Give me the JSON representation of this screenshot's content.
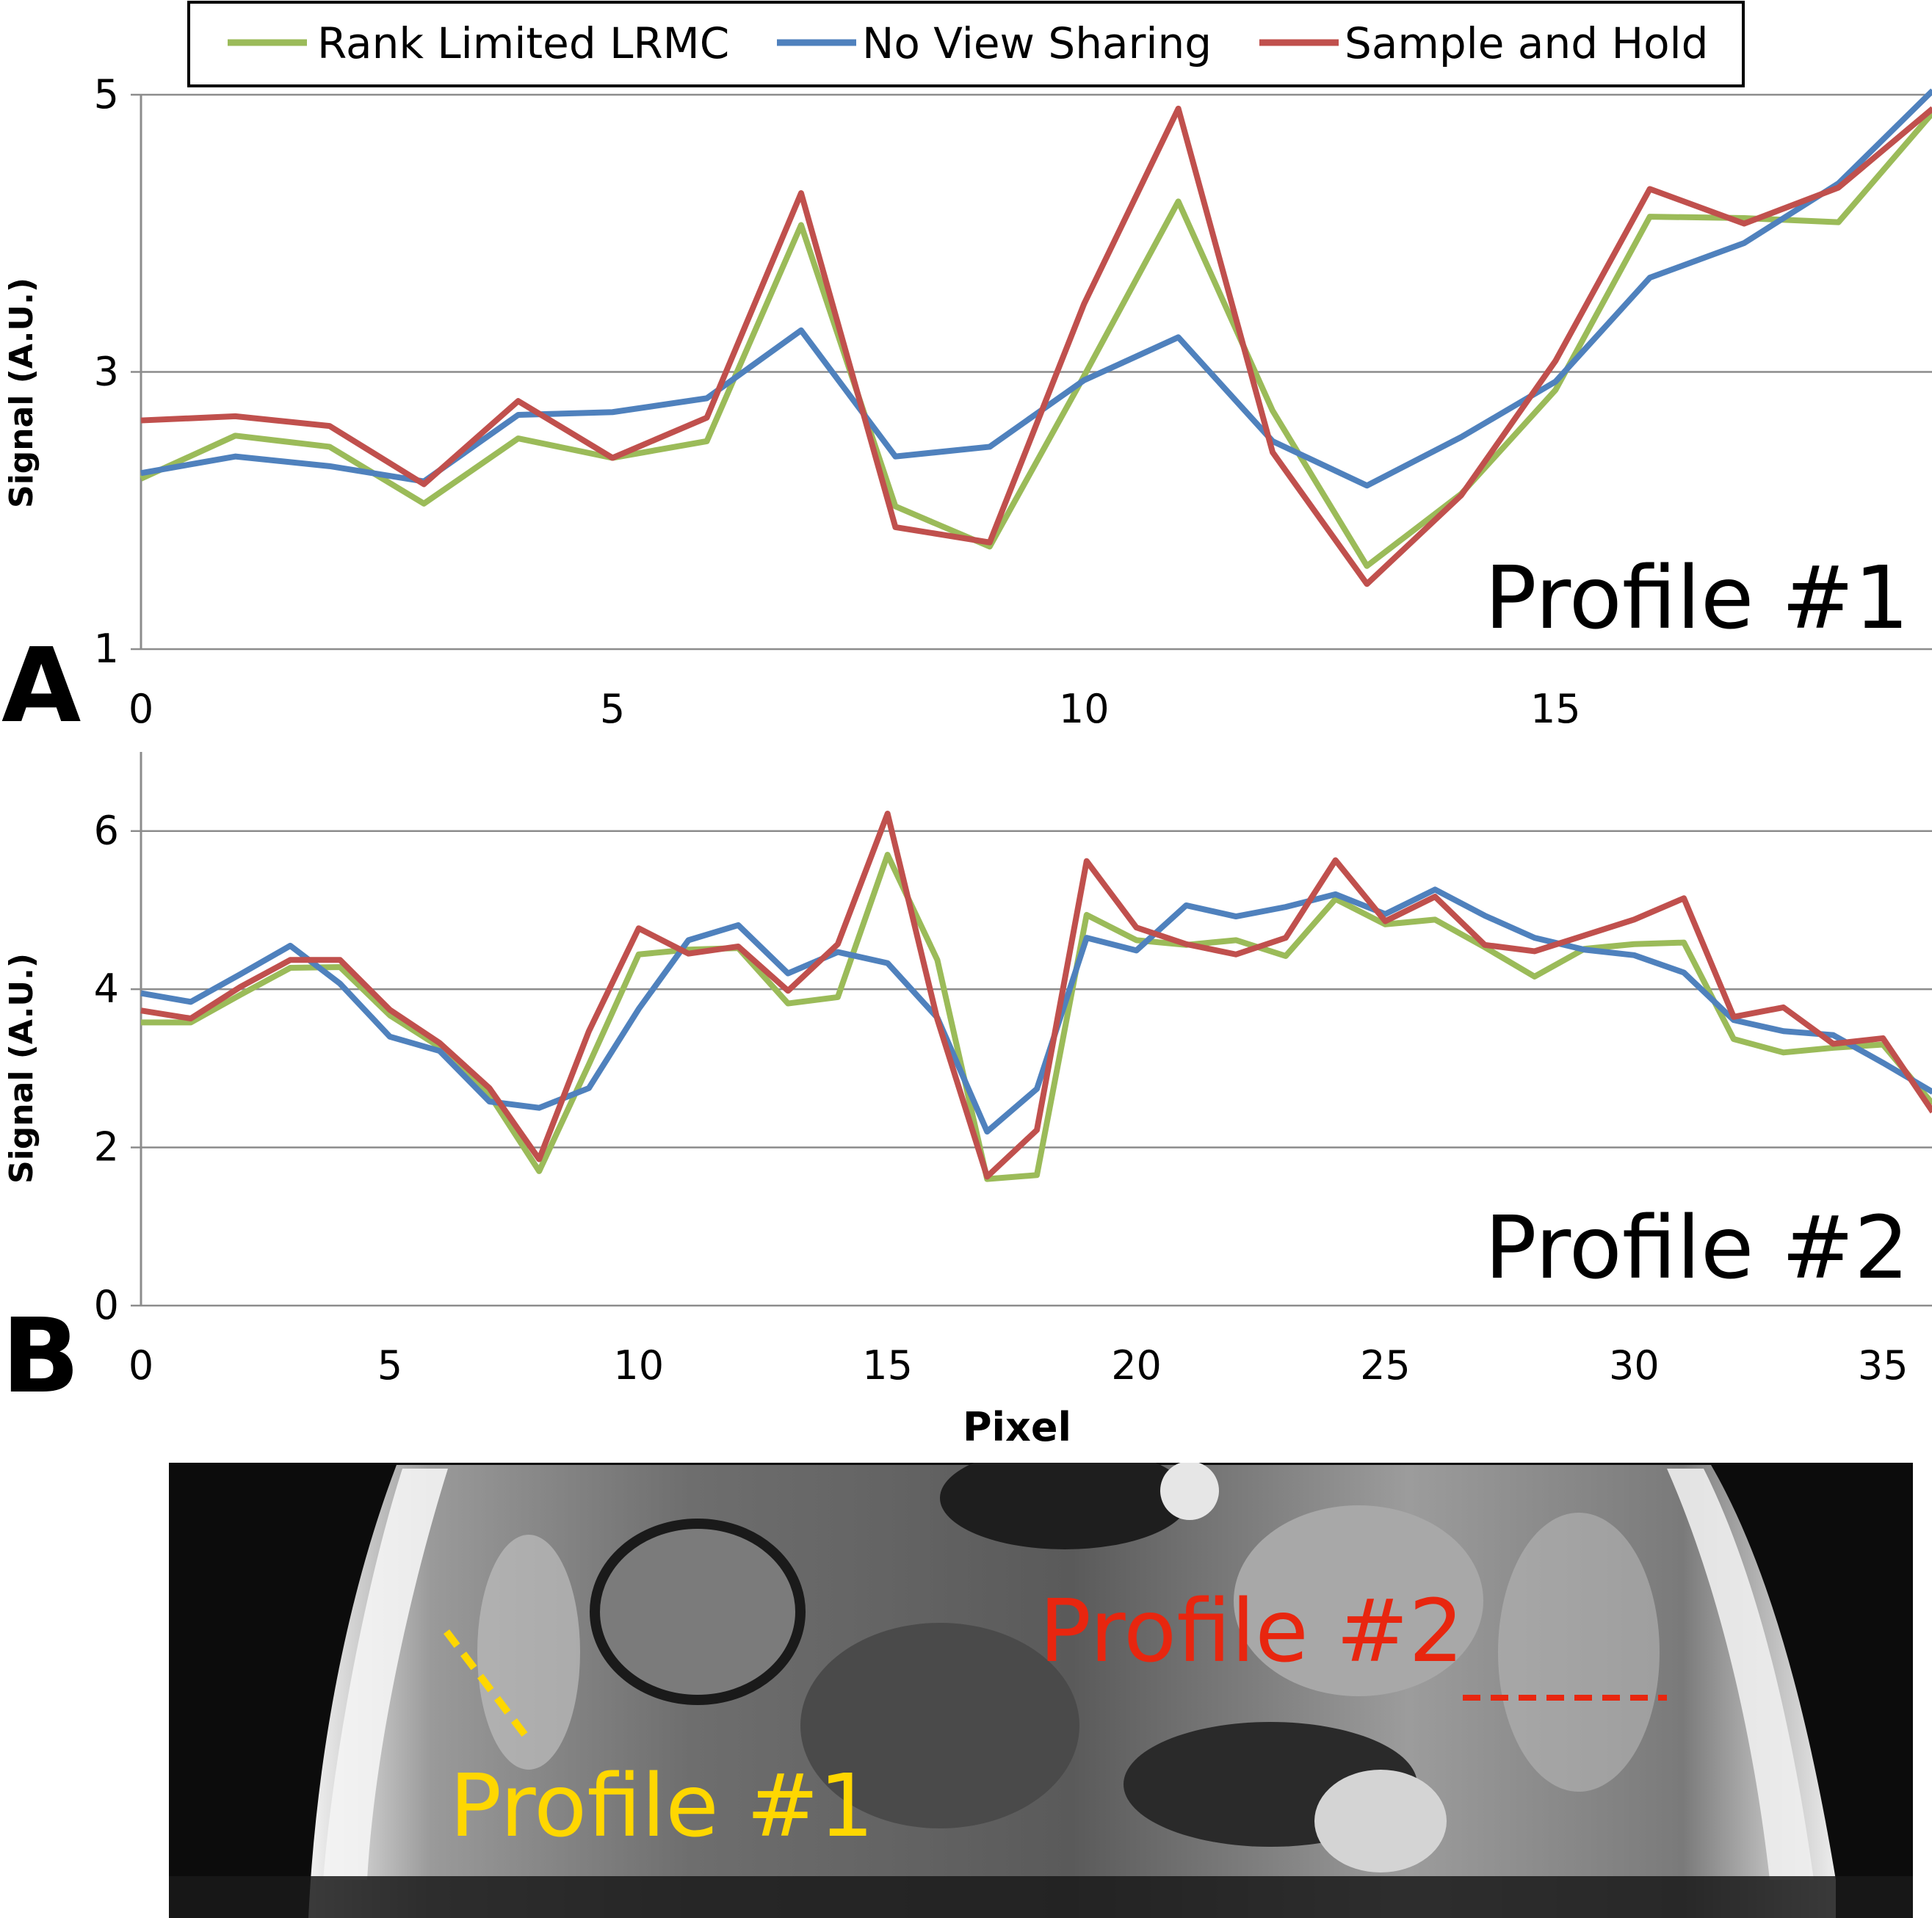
{
  "colors": {
    "rank_limited": "#9bbb59",
    "no_view_sharing": "#4f81bd",
    "sample_and_hold": "#c0504d",
    "profile1_marker": "#ffd700",
    "profile2_marker": "#e8260f"
  },
  "legend": {
    "items": [
      "Rank Limited LRMC",
      "No View Sharing",
      "Sample and Hold"
    ]
  },
  "chart_data": [
    {
      "type": "line",
      "panel_letter": "A",
      "annotation": "Profile #1",
      "title": "",
      "xlabel": "",
      "ylabel": "Signal (A.U.)",
      "xlim": [
        0,
        19
      ],
      "ylim": [
        1,
        5
      ],
      "xticks": [
        0,
        5,
        10,
        15
      ],
      "yticks": [
        1,
        3,
        5
      ],
      "x": [
        0,
        1,
        2,
        3,
        4,
        5,
        6,
        7,
        8,
        9,
        10,
        11,
        12,
        13,
        14,
        15,
        16,
        17,
        18,
        19
      ],
      "series": [
        {
          "name": "Rank Limited LRMC",
          "color": "#9bbb59",
          "values": [
            2.23,
            2.54,
            2.46,
            2.05,
            2.52,
            2.38,
            2.5,
            4.06,
            2.03,
            1.74,
            2.97,
            4.23,
            2.72,
            1.6,
            2.12,
            2.87,
            4.12,
            4.11,
            4.08,
            4.87
          ]
        },
        {
          "name": "No View Sharing",
          "color": "#4f81bd",
          "values": [
            2.27,
            2.39,
            2.32,
            2.21,
            2.69,
            2.71,
            2.81,
            3.3,
            2.39,
            2.46,
            2.94,
            3.25,
            2.5,
            2.18,
            2.53,
            2.93,
            3.68,
            3.93,
            4.36,
            5.03
          ]
        },
        {
          "name": "Sample and Hold",
          "color": "#c0504d",
          "values": [
            2.65,
            2.68,
            2.61,
            2.19,
            2.79,
            2.38,
            2.67,
            4.29,
            1.88,
            1.77,
            3.49,
            4.9,
            2.42,
            1.47,
            2.11,
            3.08,
            4.32,
            4.07,
            4.33,
            4.9
          ]
        }
      ]
    },
    {
      "type": "line",
      "panel_letter": "B",
      "annotation": "Profile #2",
      "title": "",
      "xlabel": "Pixel",
      "ylabel": "Signal (A.U.)",
      "xlim": [
        0,
        36
      ],
      "ylim": [
        0,
        7
      ],
      "xticks": [
        0,
        5,
        10,
        15,
        20,
        25,
        30,
        35
      ],
      "yticks": [
        0,
        2,
        4,
        6
      ],
      "x": [
        0,
        1,
        2,
        3,
        4,
        5,
        6,
        7,
        8,
        9,
        10,
        11,
        12,
        13,
        14,
        15,
        16,
        17,
        18,
        19,
        20,
        21,
        22,
        23,
        24,
        25,
        26,
        27,
        28,
        29,
        30,
        31,
        32,
        33,
        34,
        35,
        36
      ],
      "series": [
        {
          "name": "Rank Limited LRMC",
          "color": "#9bbb59",
          "values": [
            3.58,
            3.58,
            3.93,
            4.27,
            4.28,
            3.67,
            3.27,
            2.67,
            1.7,
            3.05,
            4.44,
            4.5,
            4.52,
            3.82,
            3.9,
            5.7,
            4.37,
            1.6,
            1.65,
            4.94,
            4.62,
            4.56,
            4.62,
            4.42,
            5.14,
            4.82,
            4.88,
            4.53,
            4.16,
            4.51,
            4.57,
            4.59,
            3.37,
            3.2,
            3.26,
            3.3,
            2.55
          ]
        },
        {
          "name": "No View Sharing",
          "color": "#4f81bd",
          "values": [
            3.95,
            3.84,
            4.19,
            4.55,
            4.07,
            3.4,
            3.22,
            2.58,
            2.5,
            2.75,
            3.75,
            4.62,
            4.81,
            4.2,
            4.47,
            4.33,
            3.64,
            2.2,
            2.74,
            4.65,
            4.49,
            5.06,
            4.92,
            5.04,
            5.2,
            4.95,
            5.26,
            4.93,
            4.65,
            4.5,
            4.43,
            4.21,
            3.61,
            3.47,
            3.42,
            3.07,
            2.7
          ]
        },
        {
          "name": "Sample and Hold",
          "color": "#c0504d",
          "values": [
            3.73,
            3.63,
            4.03,
            4.37,
            4.37,
            3.74,
            3.32,
            2.75,
            1.85,
            3.47,
            4.77,
            4.45,
            4.54,
            3.98,
            4.57,
            6.22,
            3.62,
            1.63,
            2.22,
            5.62,
            4.78,
            4.57,
            4.44,
            4.65,
            5.63,
            4.86,
            5.17,
            4.56,
            4.48,
            4.68,
            4.88,
            5.15,
            3.65,
            3.77,
            3.31,
            3.38,
            2.45
          ]
        }
      ]
    }
  ],
  "image_panel": {
    "profile1_label": "Profile #1",
    "profile2_label": "Profile #2"
  }
}
